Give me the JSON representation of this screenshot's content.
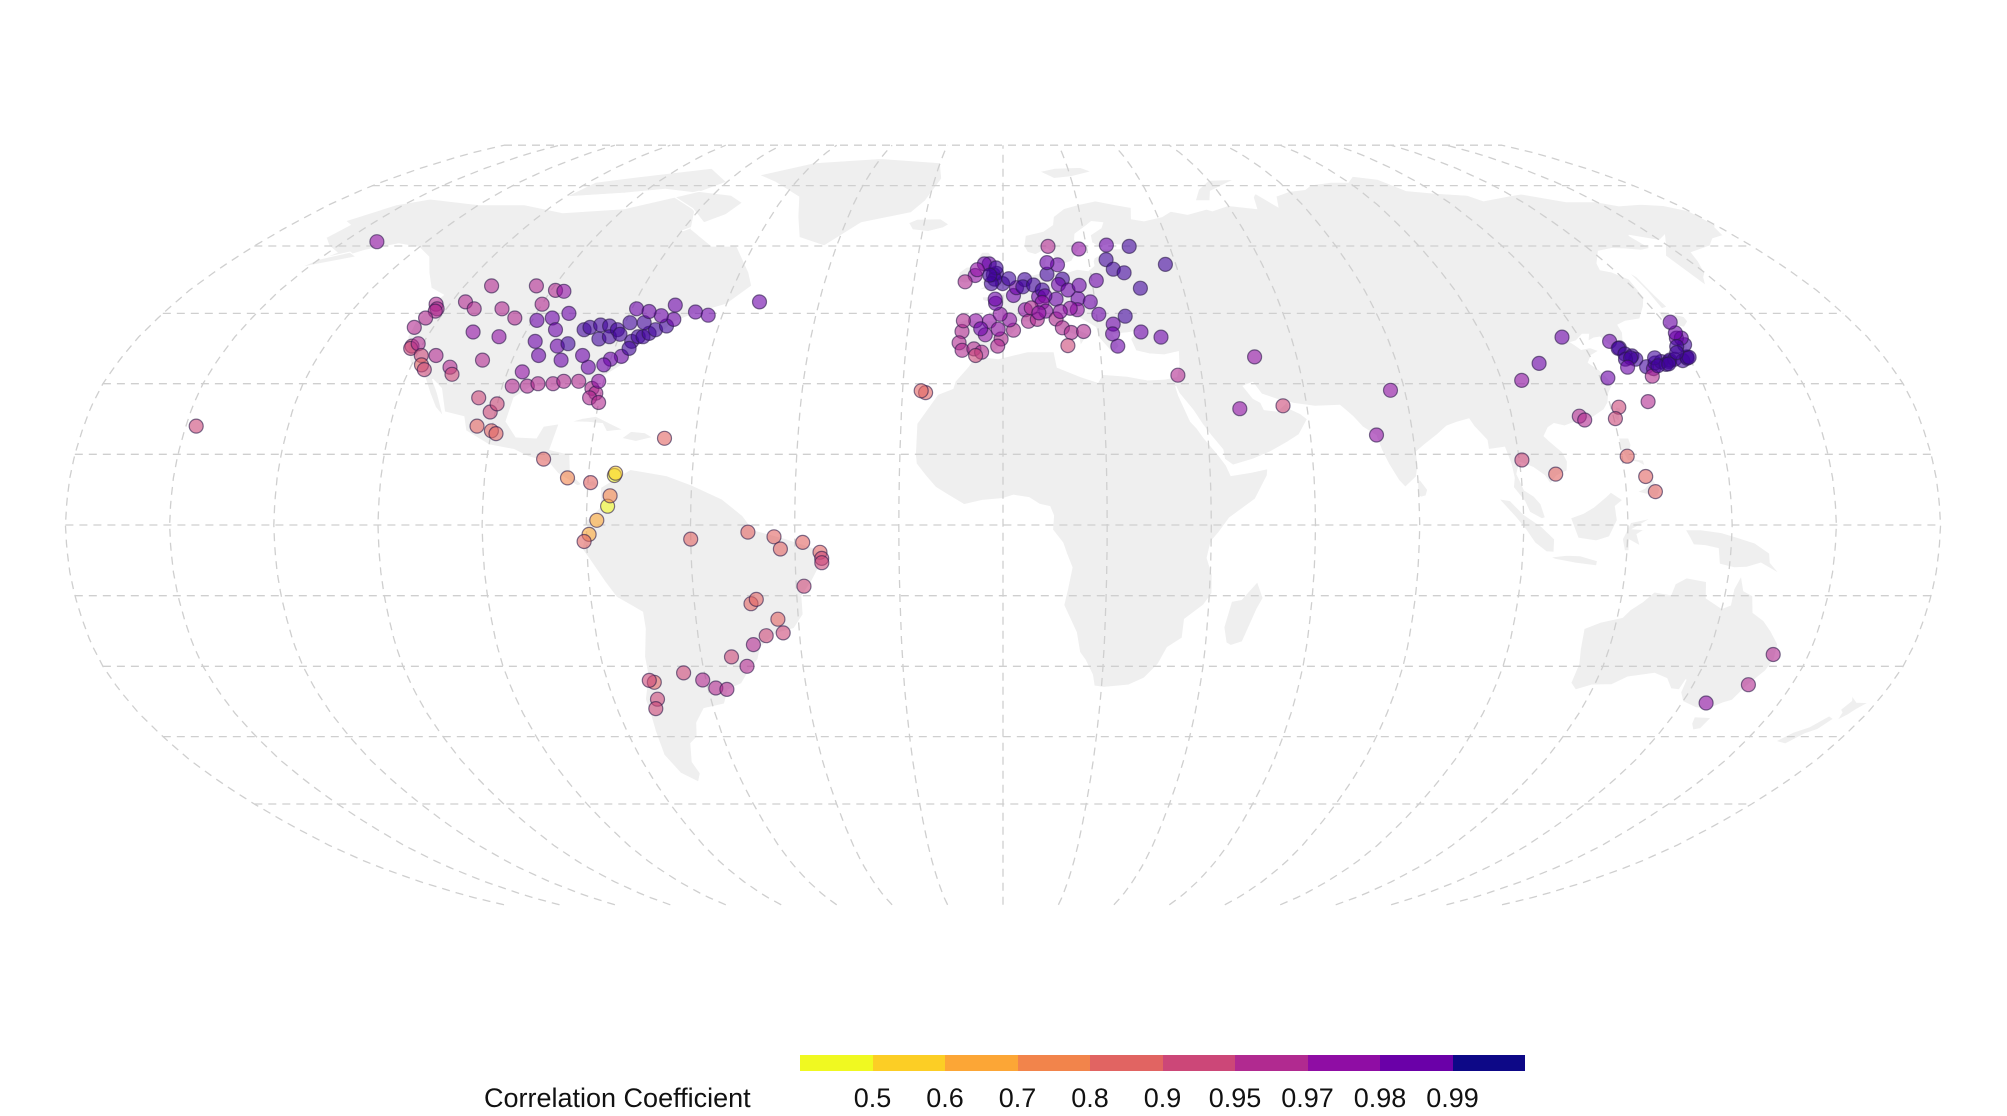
{
  "legend": {
    "title": "Correlation Coefficient",
    "colors": [
      "#f0f921",
      "#fcce25",
      "#fca636",
      "#f2844b",
      "#e16462",
      "#cc4778",
      "#b12a90",
      "#8f0da4",
      "#6a00a8",
      "#41049d",
      "#0d0887"
    ],
    "ticks": [
      "0.5",
      "0.6",
      "0.7",
      "0.8",
      "0.9",
      "0.95",
      "0.97",
      "0.98",
      "0.99"
    ]
  },
  "stations": [
    {
      "lon": -152,
      "lat": 61,
      "r": 0.97
    },
    {
      "lon": -158,
      "lat": 21,
      "r": 0.92
    },
    {
      "lon": -123,
      "lat": 47,
      "r": 0.95
    },
    {
      "lon": -122,
      "lat": 46,
      "r": 0.95
    },
    {
      "lon": -122,
      "lat": 45.5,
      "r": 0.95
    },
    {
      "lon": -123,
      "lat": 44,
      "r": 0.95
    },
    {
      "lon": -124,
      "lat": 42,
      "r": 0.95
    },
    {
      "lon": -122,
      "lat": 38,
      "r": 0.92
    },
    {
      "lon": -122,
      "lat": 37.5,
      "r": 0.93
    },
    {
      "lon": -121,
      "lat": 38.5,
      "r": 0.95
    },
    {
      "lon": -119,
      "lat": 36,
      "r": 0.93
    },
    {
      "lon": -118,
      "lat": 34,
      "r": 0.88
    },
    {
      "lon": -117,
      "lat": 33,
      "r": 0.9
    },
    {
      "lon": -116,
      "lat": 36,
      "r": 0.95
    },
    {
      "lon": -112,
      "lat": 33.5,
      "r": 0.95
    },
    {
      "lon": -111,
      "lat": 32,
      "r": 0.93
    },
    {
      "lon": -106,
      "lat": 35,
      "r": 0.96
    },
    {
      "lon": -105,
      "lat": 40,
      "r": 0.97
    },
    {
      "lon": -111,
      "lat": 41,
      "r": 0.97
    },
    {
      "lon": -117,
      "lat": 47.5,
      "r": 0.96
    },
    {
      "lon": -114,
      "lat": 46,
      "r": 0.96
    },
    {
      "lon": -108,
      "lat": 46,
      "r": 0.96
    },
    {
      "lon": -104,
      "lat": 44,
      "r": 0.96
    },
    {
      "lon": -100,
      "lat": 47,
      "r": 0.96
    },
    {
      "lon": -96,
      "lat": 44,
      "r": 0.98
    },
    {
      "lon": -97,
      "lat": 39,
      "r": 0.98
    },
    {
      "lon": -95,
      "lat": 36,
      "r": 0.98
    },
    {
      "lon": -97,
      "lat": 32.5,
      "r": 0.97
    },
    {
      "lon": -95,
      "lat": 29.5,
      "r": 0.96
    },
    {
      "lon": -98,
      "lat": 29.5,
      "r": 0.95
    },
    {
      "lon": -93,
      "lat": 30,
      "r": 0.96
    },
    {
      "lon": -90,
      "lat": 30,
      "r": 0.96
    },
    {
      "lon": -88,
      "lat": 30.5,
      "r": 0.96
    },
    {
      "lon": -85,
      "lat": 30.5,
      "r": 0.96
    },
    {
      "lon": -82,
      "lat": 29,
      "r": 0.96
    },
    {
      "lon": -81,
      "lat": 28,
      "r": 0.96
    },
    {
      "lon": -82,
      "lat": 27,
      "r": 0.96
    },
    {
      "lon": -80,
      "lat": 26,
      "r": 0.95
    },
    {
      "lon": -81,
      "lat": 30.5,
      "r": 0.97
    },
    {
      "lon": -84,
      "lat": 33.5,
      "r": 0.98
    },
    {
      "lon": -86,
      "lat": 36,
      "r": 0.98
    },
    {
      "lon": -90,
      "lat": 35,
      "r": 0.98
    },
    {
      "lon": -92,
      "lat": 38,
      "r": 0.98
    },
    {
      "lon": -90,
      "lat": 38.5,
      "r": 0.99
    },
    {
      "lon": -88,
      "lat": 41.5,
      "r": 0.99
    },
    {
      "lon": -87,
      "lat": 42,
      "r": 0.99
    },
    {
      "lon": -85,
      "lat": 42.5,
      "r": 0.99
    },
    {
      "lon": -83,
      "lat": 42.3,
      "r": 0.99
    },
    {
      "lon": -84,
      "lat": 39.5,
      "r": 0.99
    },
    {
      "lon": -82,
      "lat": 40,
      "r": 0.99
    },
    {
      "lon": -81,
      "lat": 41.5,
      "r": 0.99
    },
    {
      "lon": -80,
      "lat": 40.5,
      "r": 0.99
    },
    {
      "lon": -79,
      "lat": 43,
      "r": 0.99
    },
    {
      "lon": -77,
      "lat": 39,
      "r": 0.99
    },
    {
      "lon": -76,
      "lat": 40,
      "r": 0.99
    },
    {
      "lon": -75,
      "lat": 40,
      "r": 0.99
    },
    {
      "lon": -74,
      "lat": 40.7,
      "r": 0.99
    },
    {
      "lon": -73,
      "lat": 41.5,
      "r": 0.99
    },
    {
      "lon": -71,
      "lat": 42.3,
      "r": 0.99
    },
    {
      "lon": -70,
      "lat": 43.7,
      "r": 0.98
    },
    {
      "lon": -73,
      "lat": 44.5,
      "r": 0.98
    },
    {
      "lon": -76,
      "lat": 43,
      "r": 0.99
    },
    {
      "lon": -78,
      "lat": 35.8,
      "r": 0.98
    },
    {
      "lon": -80,
      "lat": 35.2,
      "r": 0.98
    },
    {
      "lon": -77,
      "lat": 37.5,
      "r": 0.99
    },
    {
      "lon": -81,
      "lat": 34,
      "r": 0.98
    },
    {
      "lon": -93,
      "lat": 45,
      "r": 0.98
    },
    {
      "lon": -94,
      "lat": 41.5,
      "r": 0.98
    },
    {
      "lon": -99,
      "lat": 43.5,
      "r": 0.98
    },
    {
      "lon": -99,
      "lat": 50,
      "r": 0.95
    },
    {
      "lon": -104,
      "lat": 51,
      "r": 0.95
    },
    {
      "lon": -114,
      "lat": 51,
      "r": 0.96
    },
    {
      "lon": -97,
      "lat": 49.8,
      "r": 0.97
    },
    {
      "lon": -79,
      "lat": 46,
      "r": 0.98
    },
    {
      "lon": -76,
      "lat": 45.4,
      "r": 0.98
    },
    {
      "lon": -71,
      "lat": 46.8,
      "r": 0.98
    },
    {
      "lon": -66,
      "lat": 45.3,
      "r": 0.98
    },
    {
      "lon": -63,
      "lat": 44.6,
      "r": 0.98
    },
    {
      "lon": -53,
      "lat": 47.5,
      "r": 0.98
    },
    {
      "lon": -103,
      "lat": 21,
      "r": 0.88
    },
    {
      "lon": -100,
      "lat": 20,
      "r": 0.88
    },
    {
      "lon": -99,
      "lat": 19.4,
      "r": 0.85
    },
    {
      "lon": -101,
      "lat": 24,
      "r": 0.9
    },
    {
      "lon": -104,
      "lat": 27,
      "r": 0.9
    },
    {
      "lon": -100,
      "lat": 25.7,
      "r": 0.92
    },
    {
      "lon": -89,
      "lat": 14,
      "r": 0.82
    },
    {
      "lon": -84,
      "lat": 10,
      "r": 0.75
    },
    {
      "lon": -79.5,
      "lat": 9,
      "r": 0.8
    },
    {
      "lon": -75,
      "lat": 10.5,
      "r": 0.5
    },
    {
      "lon": -74.8,
      "lat": 11,
      "r": 0.55
    },
    {
      "lon": -76,
      "lat": 4,
      "r": 0.5
    },
    {
      "lon": -75.6,
      "lat": 6.2,
      "r": 0.7
    },
    {
      "lon": -78,
      "lat": 1,
      "r": 0.65
    },
    {
      "lon": -79.5,
      "lat": -2,
      "r": 0.6
    },
    {
      "lon": -80.5,
      "lat": -3.5,
      "r": 0.8
    },
    {
      "lon": -66,
      "lat": 18.4,
      "r": 0.85
    },
    {
      "lon": -60,
      "lat": -3,
      "r": 0.88
    },
    {
      "lon": -49,
      "lat": -1.5,
      "r": 0.85
    },
    {
      "lon": -44,
      "lat": -2.5,
      "r": 0.8
    },
    {
      "lon": -38.5,
      "lat": -3.7,
      "r": 0.82
    },
    {
      "lon": -35.2,
      "lat": -5.8,
      "r": 0.85
    },
    {
      "lon": -34.9,
      "lat": -7.1,
      "r": 0.9
    },
    {
      "lon": -34.9,
      "lat": -8,
      "r": 0.9
    },
    {
      "lon": -42.8,
      "lat": -5.1,
      "r": 0.85
    },
    {
      "lon": -38.5,
      "lat": -13,
      "r": 0.92
    },
    {
      "lon": -49,
      "lat": -16.7,
      "r": 0.88
    },
    {
      "lon": -47.9,
      "lat": -15.8,
      "r": 0.88
    },
    {
      "lon": -46.6,
      "lat": -23.5,
      "r": 0.93
    },
    {
      "lon": -43.2,
      "lat": -22.9,
      "r": 0.9
    },
    {
      "lon": -44,
      "lat": -20,
      "r": 0.88
    },
    {
      "lon": -49.3,
      "lat": -25.4,
      "r": 0.95
    },
    {
      "lon": -51.2,
      "lat": -30,
      "r": 0.95
    },
    {
      "lon": -54,
      "lat": -28,
      "r": 0.93
    },
    {
      "lon": -58.4,
      "lat": -34.6,
      "r": 0.96
    },
    {
      "lon": -56.2,
      "lat": -34.9,
      "r": 0.95
    },
    {
      "lon": -60.7,
      "lat": -32.9,
      "r": 0.95
    },
    {
      "lon": -64.2,
      "lat": -31.4,
      "r": 0.92
    },
    {
      "lon": -70.6,
      "lat": -33.4,
      "r": 0.88
    },
    {
      "lon": -71.5,
      "lat": -33,
      "r": 0.9
    },
    {
      "lon": -71,
      "lat": -37,
      "r": 0.9
    },
    {
      "lon": -72,
      "lat": -39,
      "r": 0.92
    },
    {
      "lon": -8.6,
      "lat": 41.1,
      "r": 0.95
    },
    {
      "lon": -9.1,
      "lat": 38.7,
      "r": 0.95
    },
    {
      "lon": -8.4,
      "lat": 37.1,
      "r": 0.95
    },
    {
      "lon": -6,
      "lat": 37.4,
      "r": 0.96
    },
    {
      "lon": -3.7,
      "lat": 40.4,
      "r": 0.97
    },
    {
      "lon": -4.4,
      "lat": 36.7,
      "r": 0.95
    },
    {
      "lon": -0.4,
      "lat": 39.5,
      "r": 0.96
    },
    {
      "lon": -1.1,
      "lat": 38,
      "r": 0.95
    },
    {
      "lon": 2.2,
      "lat": 41.4,
      "r": 0.96
    },
    {
      "lon": -2.9,
      "lat": 43.3,
      "r": 0.97
    },
    {
      "lon": -5.8,
      "lat": 43.4,
      "r": 0.97
    },
    {
      "lon": -8.4,
      "lat": 43.4,
      "r": 0.96
    },
    {
      "lon": -4.7,
      "lat": 41.7,
      "r": 0.98
    },
    {
      "lon": -1,
      "lat": 41.6,
      "r": 0.97
    },
    {
      "lon": -5.6,
      "lat": 36,
      "r": 0.93
    },
    {
      "lon": -15.4,
      "lat": 28.1,
      "r": 0.85
    },
    {
      "lon": -16.3,
      "lat": 28.5,
      "r": 0.87
    },
    {
      "lon": 2.3,
      "lat": 48.9,
      "r": 0.98
    },
    {
      "lon": 4.8,
      "lat": 45.8,
      "r": 0.97
    },
    {
      "lon": 5.4,
      "lat": 43.3,
      "r": 0.95
    },
    {
      "lon": 1.4,
      "lat": 43.6,
      "r": 0.97
    },
    {
      "lon": -0.6,
      "lat": 44.8,
      "r": 0.97
    },
    {
      "lon": -1.6,
      "lat": 47.2,
      "r": 0.98
    },
    {
      "lon": -1.7,
      "lat": 48.1,
      "r": 0.98
    },
    {
      "lon": 7.3,
      "lat": 43.7,
      "r": 0.95
    },
    {
      "lon": 7.8,
      "lat": 48.6,
      "r": 0.98
    },
    {
      "lon": 3,
      "lat": 50.6,
      "r": 0.98
    },
    {
      "lon": -0.1,
      "lat": 51.5,
      "r": 0.99
    },
    {
      "lon": -2.2,
      "lat": 53.5,
      "r": 0.99
    },
    {
      "lon": -1.5,
      "lat": 53.8,
      "r": 0.99
    },
    {
      "lon": -1.9,
      "lat": 52.5,
      "r": 0.99
    },
    {
      "lon": -2.6,
      "lat": 51.5,
      "r": 0.99
    },
    {
      "lon": -3.2,
      "lat": 55.9,
      "r": 0.98
    },
    {
      "lon": -4.3,
      "lat": 55.9,
      "r": 0.98
    },
    {
      "lon": -6.3,
      "lat": 53.3,
      "r": 0.97
    },
    {
      "lon": -8.5,
      "lat": 51.9,
      "r": 0.96
    },
    {
      "lon": -5.9,
      "lat": 54.6,
      "r": 0.97
    },
    {
      "lon": -1.6,
      "lat": 55,
      "r": 0.99
    },
    {
      "lon": 1.3,
      "lat": 52.6,
      "r": 0.99
    },
    {
      "lon": -3,
      "lat": 53.4,
      "r": 0.99
    },
    {
      "lon": 4.9,
      "lat": 52.4,
      "r": 0.99
    },
    {
      "lon": 4.4,
      "lat": 50.8,
      "r": 0.99
    },
    {
      "lon": 6.8,
      "lat": 51.2,
      "r": 0.99
    },
    {
      "lon": 8.7,
      "lat": 50.1,
      "r": 0.99
    },
    {
      "lon": 10,
      "lat": 53.6,
      "r": 0.99
    },
    {
      "lon": 13.4,
      "lat": 52.5,
      "r": 0.99
    },
    {
      "lon": 11.6,
      "lat": 48.1,
      "r": 0.98
    },
    {
      "lon": 9.2,
      "lat": 48.8,
      "r": 0.98
    },
    {
      "lon": 12.4,
      "lat": 51.3,
      "r": 0.98
    },
    {
      "lon": 8.5,
      "lat": 47.4,
      "r": 0.97
    },
    {
      "lon": 6.1,
      "lat": 46.2,
      "r": 0.96
    },
    {
      "lon": 16.4,
      "lat": 48.2,
      "r": 0.98
    },
    {
      "lon": 14.4,
      "lat": 50.1,
      "r": 0.98
    },
    {
      "lon": 19,
      "lat": 47.5,
      "r": 0.98
    },
    {
      "lon": 21,
      "lat": 52.2,
      "r": 0.98
    },
    {
      "lon": 17,
      "lat": 51.1,
      "r": 0.98
    },
    {
      "lon": 12.6,
      "lat": 55.7,
      "r": 0.98
    },
    {
      "lon": 10.2,
      "lat": 56.2,
      "r": 0.98
    },
    {
      "lon": 18.1,
      "lat": 59.3,
      "r": 0.97
    },
    {
      "lon": 10.8,
      "lat": 59.9,
      "r": 0.95
    },
    {
      "lon": 24.9,
      "lat": 60.2,
      "r": 0.98
    },
    {
      "lon": 24.1,
      "lat": 56.9,
      "r": 0.99
    },
    {
      "lon": 25.3,
      "lat": 54.7,
      "r": 0.99
    },
    {
      "lon": 27.6,
      "lat": 53.9,
      "r": 0.99
    },
    {
      "lon": 30.3,
      "lat": 59.9,
      "r": 0.99
    },
    {
      "lon": 37.6,
      "lat": 55.8,
      "r": 0.99
    },
    {
      "lon": 30.5,
      "lat": 50.5,
      "r": 0.99
    },
    {
      "lon": 26.1,
      "lat": 44.4,
      "r": 0.99
    },
    {
      "lon": 23.3,
      "lat": 42.7,
      "r": 0.98
    },
    {
      "lon": 20.5,
      "lat": 44.8,
      "r": 0.98
    },
    {
      "lon": 16,
      "lat": 45.8,
      "r": 0.97
    },
    {
      "lon": 14.5,
      "lat": 46.1,
      "r": 0.97
    },
    {
      "lon": 9.2,
      "lat": 45.5,
      "r": 0.97
    },
    {
      "lon": 7.7,
      "lat": 45.1,
      "r": 0.97
    },
    {
      "lon": 11.3,
      "lat": 43.8,
      "r": 0.96
    },
    {
      "lon": 12.5,
      "lat": 41.9,
      "r": 0.96
    },
    {
      "lon": 14.3,
      "lat": 40.9,
      "r": 0.95
    },
    {
      "lon": 13.4,
      "lat": 38.1,
      "r": 0.93
    },
    {
      "lon": 16.9,
      "lat": 41.1,
      "r": 0.95
    },
    {
      "lon": 12.3,
      "lat": 45.4,
      "r": 0.97
    },
    {
      "lon": 23.7,
      "lat": 38,
      "r": 0.98
    },
    {
      "lon": 22.9,
      "lat": 40.6,
      "r": 0.98
    },
    {
      "lon": 28.9,
      "lat": 41,
      "r": 0.98
    },
    {
      "lon": 32.9,
      "lat": 39.9,
      "r": 0.98
    },
    {
      "lon": 35.2,
      "lat": 31.8,
      "r": 0.95
    },
    {
      "lon": 51.4,
      "lat": 35.7,
      "r": 0.97
    },
    {
      "lon": 46.7,
      "lat": 24.7,
      "r": 0.97
    },
    {
      "lon": 55.3,
      "lat": 25.3,
      "r": 0.92
    },
    {
      "lon": 77.2,
      "lat": 28.6,
      "r": 0.97
    },
    {
      "lon": 72.9,
      "lat": 19.1,
      "r": 0.97
    },
    {
      "lon": 116.4,
      "lat": 39.9,
      "r": 0.98
    },
    {
      "lon": 121.5,
      "lat": 31.2,
      "r": 0.98
    },
    {
      "lon": 113.3,
      "lat": 23.1,
      "r": 0.95
    },
    {
      "lon": 114.2,
      "lat": 22.3,
      "r": 0.95
    },
    {
      "lon": 121.5,
      "lat": 25,
      "r": 0.93
    },
    {
      "lon": 120.3,
      "lat": 22.6,
      "r": 0.93
    },
    {
      "lon": 104,
      "lat": 30.7,
      "r": 0.97
    },
    {
      "lon": 108.9,
      "lat": 34.3,
      "r": 0.98
    },
    {
      "lon": 100.5,
      "lat": 13.8,
      "r": 0.92
    },
    {
      "lon": 106.7,
      "lat": 10.8,
      "r": 0.88
    },
    {
      "lon": 121,
      "lat": 14.6,
      "r": 0.85
    },
    {
      "lon": 124,
      "lat": 10.3,
      "r": 0.8
    },
    {
      "lon": 125.6,
      "lat": 7.1,
      "r": 0.82
    },
    {
      "lon": 125.8,
      "lat": 39,
      "r": 0.98
    },
    {
      "lon": 127,
      "lat": 37.6,
      "r": 0.99
    },
    {
      "lon": 126.7,
      "lat": 37.5,
      "r": 0.99
    },
    {
      "lon": 127.4,
      "lat": 36.3,
      "r": 0.99
    },
    {
      "lon": 128.6,
      "lat": 35.9,
      "r": 0.99
    },
    {
      "lon": 129,
      "lat": 35.2,
      "r": 0.99
    },
    {
      "lon": 126.9,
      "lat": 35.2,
      "r": 0.99
    },
    {
      "lon": 128.1,
      "lat": 35.5,
      "r": 0.99
    },
    {
      "lon": 126.5,
      "lat": 33.5,
      "r": 0.98
    },
    {
      "lon": 127.7,
      "lat": 26.2,
      "r": 0.96
    },
    {
      "lon": 130.4,
      "lat": 33.6,
      "r": 0.99
    },
    {
      "lon": 131.6,
      "lat": 33.2,
      "r": 0.98
    },
    {
      "lon": 130.6,
      "lat": 31.6,
      "r": 0.96
    },
    {
      "lon": 132.5,
      "lat": 34.4,
      "r": 0.99
    },
    {
      "lon": 133.9,
      "lat": 34.7,
      "r": 0.99
    },
    {
      "lon": 135.5,
      "lat": 34.7,
      "r": 0.99
    },
    {
      "lon": 135.8,
      "lat": 35,
      "r": 0.99
    },
    {
      "lon": 136.9,
      "lat": 35.2,
      "r": 0.99
    },
    {
      "lon": 138.4,
      "lat": 34.9,
      "r": 0.99
    },
    {
      "lon": 139.7,
      "lat": 35.7,
      "r": 0.99
    },
    {
      "lon": 139.6,
      "lat": 35.4,
      "r": 0.99
    },
    {
      "lon": 140.1,
      "lat": 35.6,
      "r": 0.99
    },
    {
      "lon": 140.9,
      "lat": 38.3,
      "r": 0.99
    },
    {
      "lon": 140.1,
      "lat": 39.7,
      "r": 0.98
    },
    {
      "lon": 141.1,
      "lat": 39.7,
      "r": 0.98
    },
    {
      "lon": 140.7,
      "lat": 40.8,
      "r": 0.98
    },
    {
      "lon": 141.4,
      "lat": 43.1,
      "r": 0.98
    },
    {
      "lon": 139,
      "lat": 37.9,
      "r": 0.99
    },
    {
      "lon": 138.2,
      "lat": 36.6,
      "r": 0.99
    },
    {
      "lon": 133,
      "lat": 35.5,
      "r": 0.99
    },
    {
      "lon": 134.6,
      "lat": 34.1,
      "r": 0.99
    },
    {
      "lon": 132.8,
      "lat": 33.8,
      "r": 0.99
    },
    {
      "lon": 135.2,
      "lat": 34.2,
      "r": 0.99
    },
    {
      "lon": 151.2,
      "lat": -33.9,
      "r": 0.96
    },
    {
      "lon": 153,
      "lat": -27.5,
      "r": 0.95
    },
    {
      "lon": 145,
      "lat": -37.8,
      "r": 0.97
    }
  ]
}
